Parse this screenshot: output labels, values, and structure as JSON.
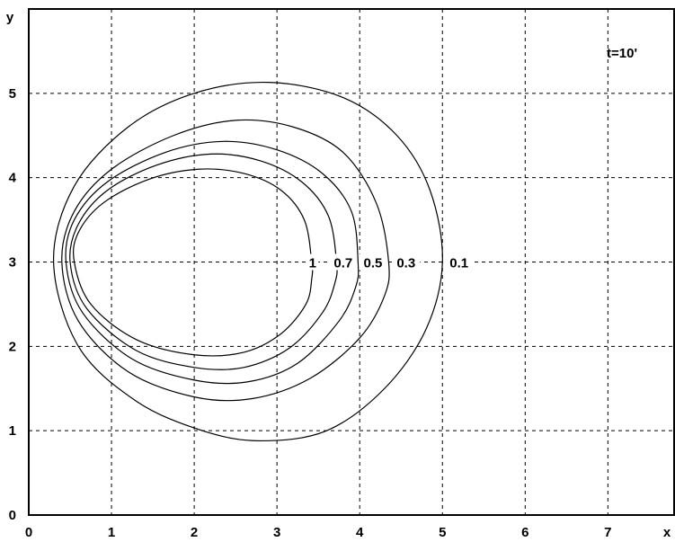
{
  "chart_data": {
    "type": "line",
    "title": "",
    "xlabel": "x",
    "ylabel": "y",
    "xlim": [
      0,
      7.8
    ],
    "ylim": [
      0,
      6
    ],
    "x_ticks": [
      "0",
      "1",
      "2",
      "3",
      "4",
      "5",
      "6",
      "7"
    ],
    "y_ticks": [
      "0",
      "1",
      "2",
      "3",
      "4",
      "5"
    ],
    "grid": true,
    "grid_style": "dashed",
    "annotation": "t=10'",
    "line_color": "#000000",
    "background_color": "#ffffff",
    "contours": [
      {
        "level": "0.1",
        "points": [
          [
            5.0,
            3.0
          ],
          [
            4.85,
            3.85
          ],
          [
            4.45,
            4.5
          ],
          [
            3.8,
            4.95
          ],
          [
            2.9,
            5.13
          ],
          [
            2.0,
            5.0
          ],
          [
            1.2,
            4.6
          ],
          [
            0.55,
            3.9
          ],
          [
            0.3,
            3.0
          ],
          [
            0.6,
            2.0
          ],
          [
            1.3,
            1.35
          ],
          [
            2.1,
            1.0
          ],
          [
            2.8,
            0.88
          ],
          [
            3.6,
            1.0
          ],
          [
            4.3,
            1.5
          ],
          [
            4.8,
            2.2
          ]
        ]
      },
      {
        "level": "0.3",
        "points": [
          [
            4.35,
            3.0
          ],
          [
            4.2,
            3.7
          ],
          [
            3.8,
            4.3
          ],
          [
            3.2,
            4.6
          ],
          [
            2.5,
            4.68
          ],
          [
            1.75,
            4.5
          ],
          [
            1.0,
            4.1
          ],
          [
            0.55,
            3.6
          ],
          [
            0.4,
            3.0
          ],
          [
            0.6,
            2.3
          ],
          [
            1.2,
            1.7
          ],
          [
            2.0,
            1.4
          ],
          [
            2.7,
            1.38
          ],
          [
            3.4,
            1.62
          ],
          [
            4.0,
            2.1
          ],
          [
            4.3,
            2.6
          ]
        ]
      },
      {
        "level": "0.5",
        "points": [
          [
            3.98,
            3.0
          ],
          [
            3.9,
            3.6
          ],
          [
            3.55,
            4.05
          ],
          [
            3.0,
            4.33
          ],
          [
            2.35,
            4.43
          ],
          [
            1.65,
            4.3
          ],
          [
            0.95,
            3.95
          ],
          [
            0.55,
            3.5
          ],
          [
            0.45,
            3.0
          ],
          [
            0.65,
            2.4
          ],
          [
            1.25,
            1.85
          ],
          [
            2.0,
            1.6
          ],
          [
            2.65,
            1.58
          ],
          [
            3.25,
            1.8
          ],
          [
            3.75,
            2.3
          ],
          [
            3.95,
            2.7
          ]
        ]
      },
      {
        "level": "0.7",
        "points": [
          [
            3.72,
            3.0
          ],
          [
            3.62,
            3.55
          ],
          [
            3.3,
            3.95
          ],
          [
            2.8,
            4.2
          ],
          [
            2.2,
            4.28
          ],
          [
            1.55,
            4.15
          ],
          [
            0.95,
            3.85
          ],
          [
            0.6,
            3.45
          ],
          [
            0.5,
            3.0
          ],
          [
            0.7,
            2.45
          ],
          [
            1.3,
            1.95
          ],
          [
            2.0,
            1.75
          ],
          [
            2.6,
            1.75
          ],
          [
            3.15,
            1.98
          ],
          [
            3.55,
            2.4
          ],
          [
            3.7,
            2.75
          ]
        ]
      },
      {
        "level": "1",
        "points": [
          [
            3.42,
            3.0
          ],
          [
            3.33,
            3.5
          ],
          [
            3.05,
            3.85
          ],
          [
            2.6,
            4.05
          ],
          [
            2.05,
            4.1
          ],
          [
            1.45,
            3.98
          ],
          [
            0.9,
            3.7
          ],
          [
            0.6,
            3.35
          ],
          [
            0.55,
            3.0
          ],
          [
            0.75,
            2.5
          ],
          [
            1.3,
            2.08
          ],
          [
            2.0,
            1.9
          ],
          [
            2.6,
            1.93
          ],
          [
            3.05,
            2.15
          ],
          [
            3.35,
            2.5
          ],
          [
            3.42,
            2.8
          ]
        ]
      }
    ],
    "contour_labels": [
      {
        "text": "1",
        "x": 3.43,
        "y": 3.0
      },
      {
        "text": "0.7",
        "x": 3.8,
        "y": 3.0
      },
      {
        "text": "0.5",
        "x": 4.16,
        "y": 3.0
      },
      {
        "text": "0.3",
        "x": 4.56,
        "y": 3.0
      },
      {
        "text": "0.1",
        "x": 5.2,
        "y": 3.0
      }
    ]
  }
}
